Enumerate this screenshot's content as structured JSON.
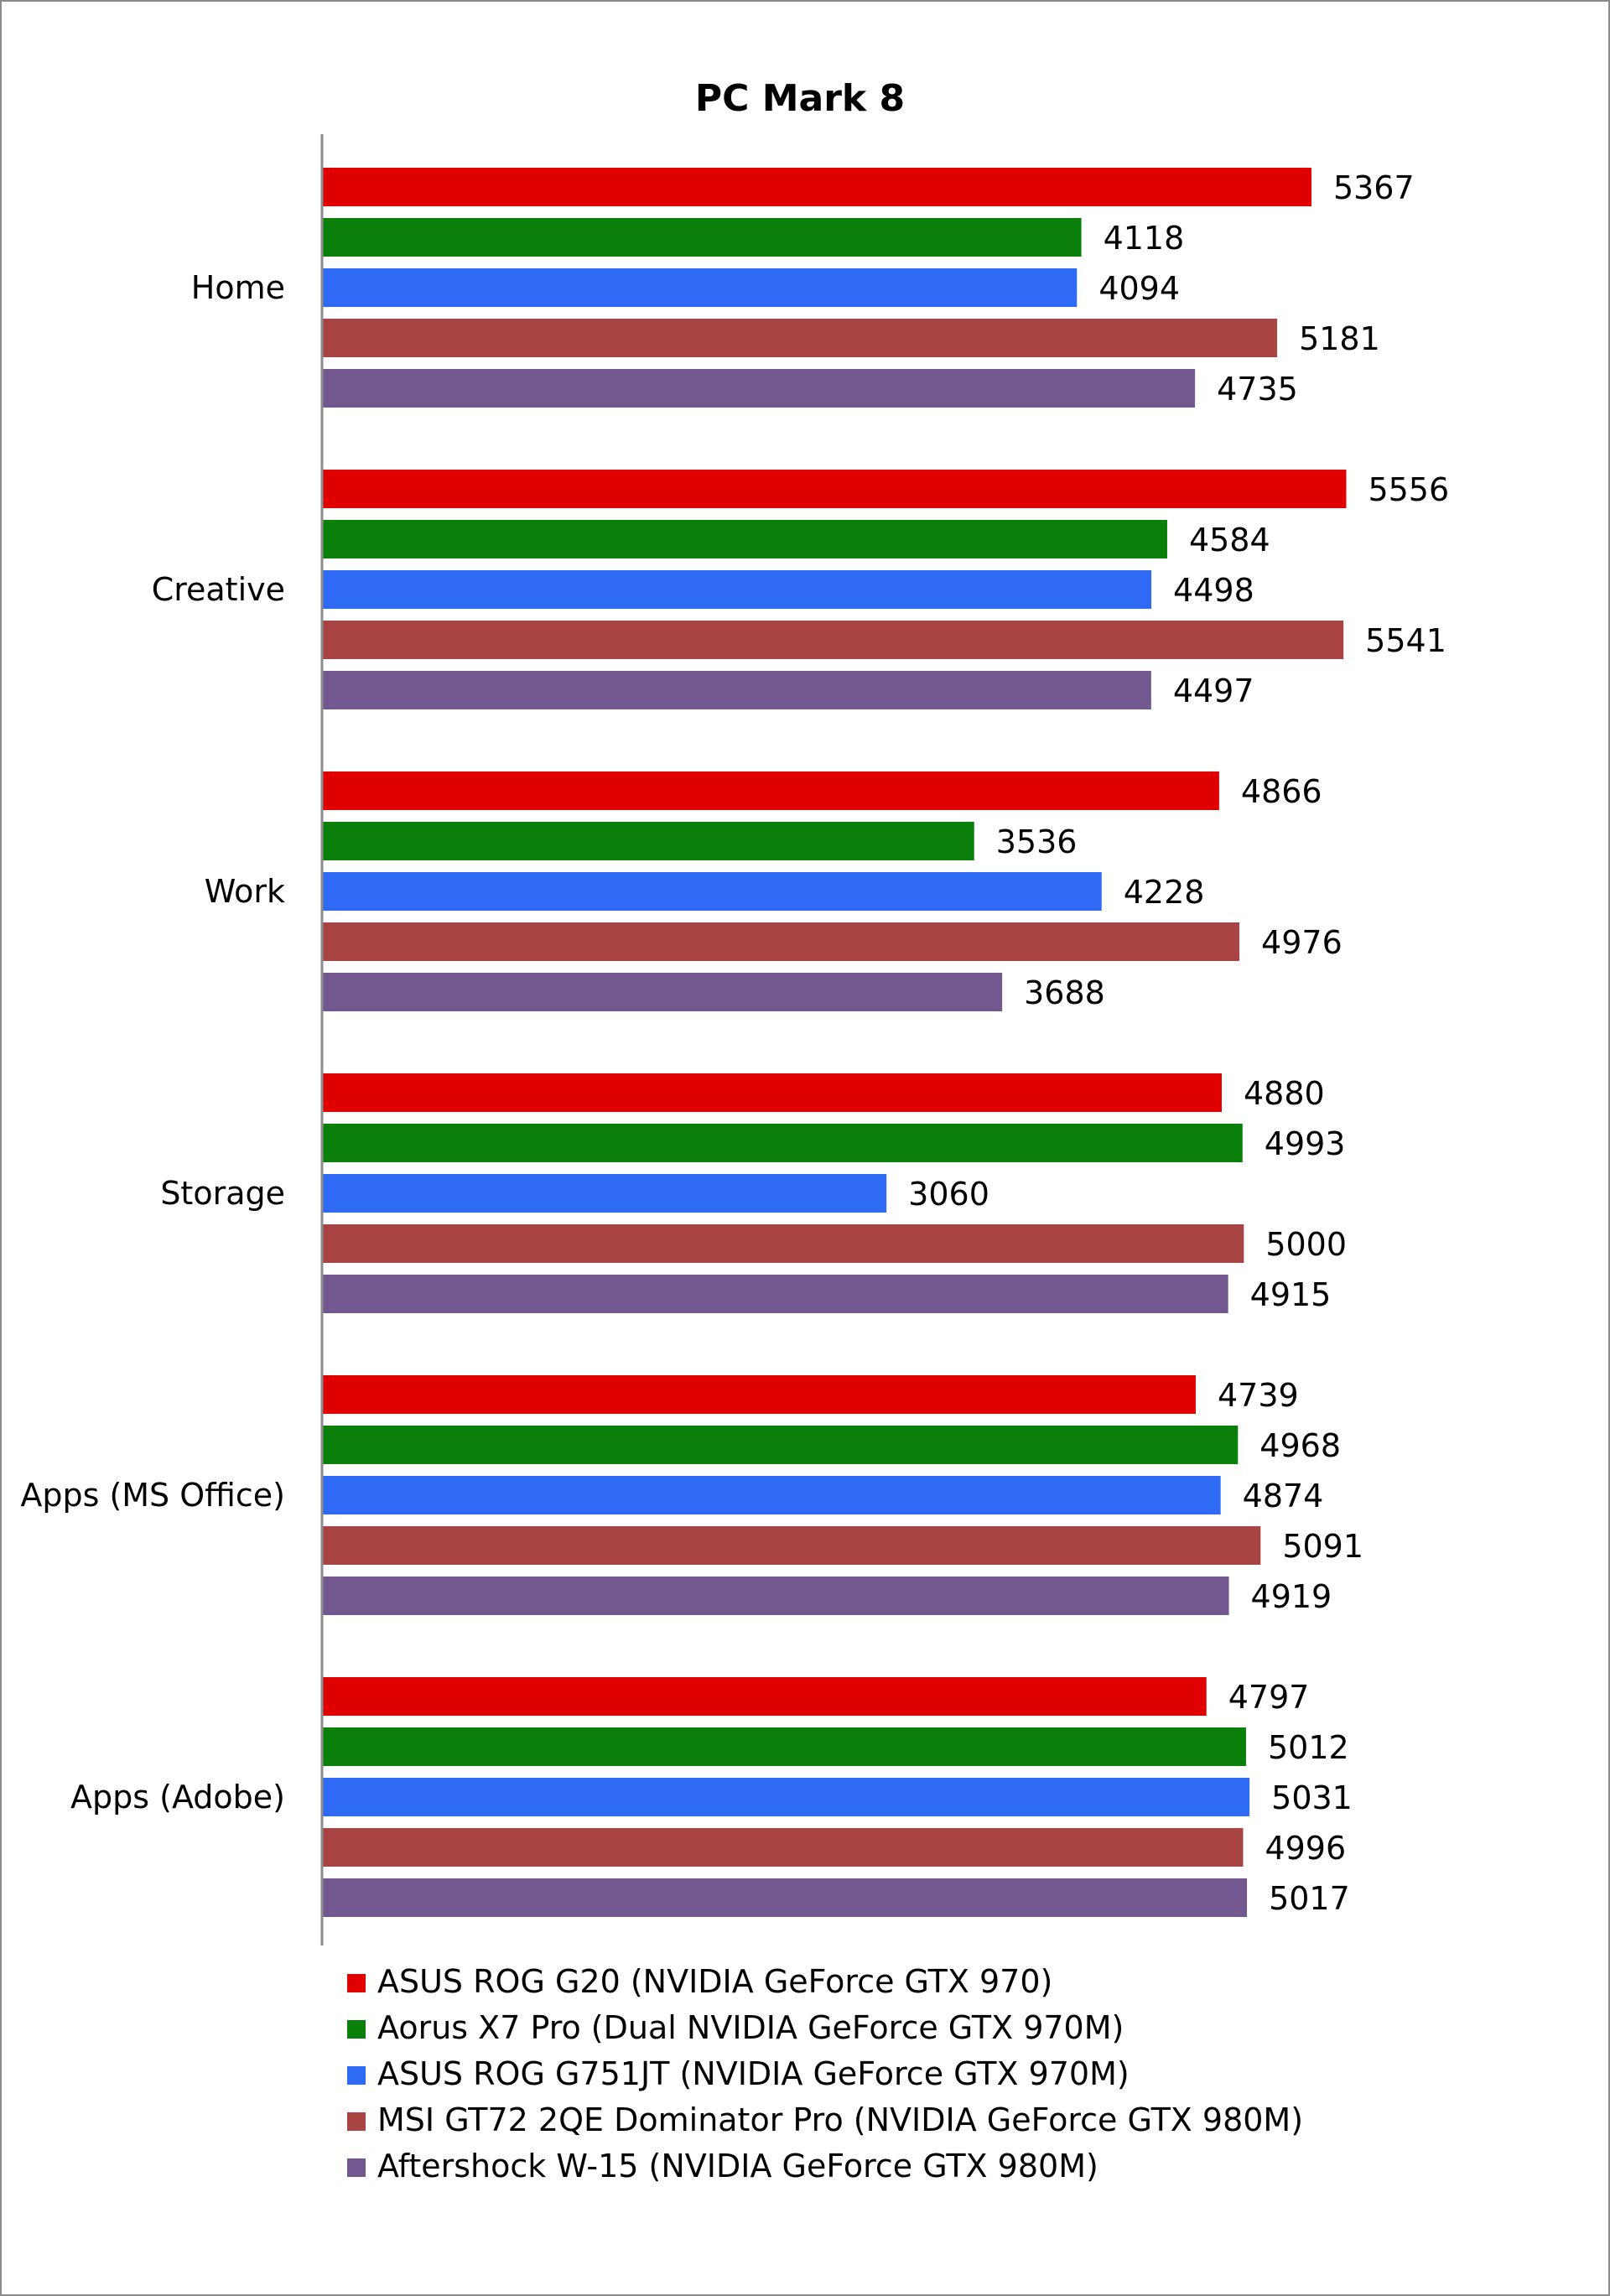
{
  "chart_data": {
    "type": "bar",
    "orientation": "horizontal",
    "title": "PC Mark 8",
    "xlabel": "",
    "ylabel": "",
    "xlim": [
      0,
      6000
    ],
    "grid": false,
    "legend_position": "bottom-left",
    "categories": [
      "Home",
      "Creative",
      "Work",
      "Storage",
      "Apps (MS Office)",
      "Apps (Adobe)"
    ],
    "series": [
      {
        "name": "ASUS ROG G20 (NVIDIA GeForce GTX 970)",
        "color": "#e00000",
        "values": [
          5367,
          5556,
          4866,
          4880,
          4739,
          4797
        ]
      },
      {
        "name": "Aorus X7 Pro (Dual NVIDIA GeForce GTX 970M)",
        "color": "#0a7f0a",
        "values": [
          4118,
          4584,
          3536,
          4993,
          4968,
          5012
        ]
      },
      {
        "name": "ASUS ROG G751JT (NVIDIA GeForce GTX 970M)",
        "color": "#2f6af5",
        "values": [
          4094,
          4498,
          4228,
          3060,
          4874,
          5031
        ]
      },
      {
        "name": "MSI GT72 2QE Dominator Pro (NVIDIA GeForce GTX 980M)",
        "color": "#a84444",
        "values": [
          5181,
          5541,
          4976,
          5000,
          5091,
          4996
        ]
      },
      {
        "name": "Aftershock W-15 (NVIDIA GeForce GTX 980M)",
        "color": "#735890",
        "values": [
          4735,
          4497,
          3688,
          4915,
          4919,
          5017
        ]
      }
    ]
  }
}
